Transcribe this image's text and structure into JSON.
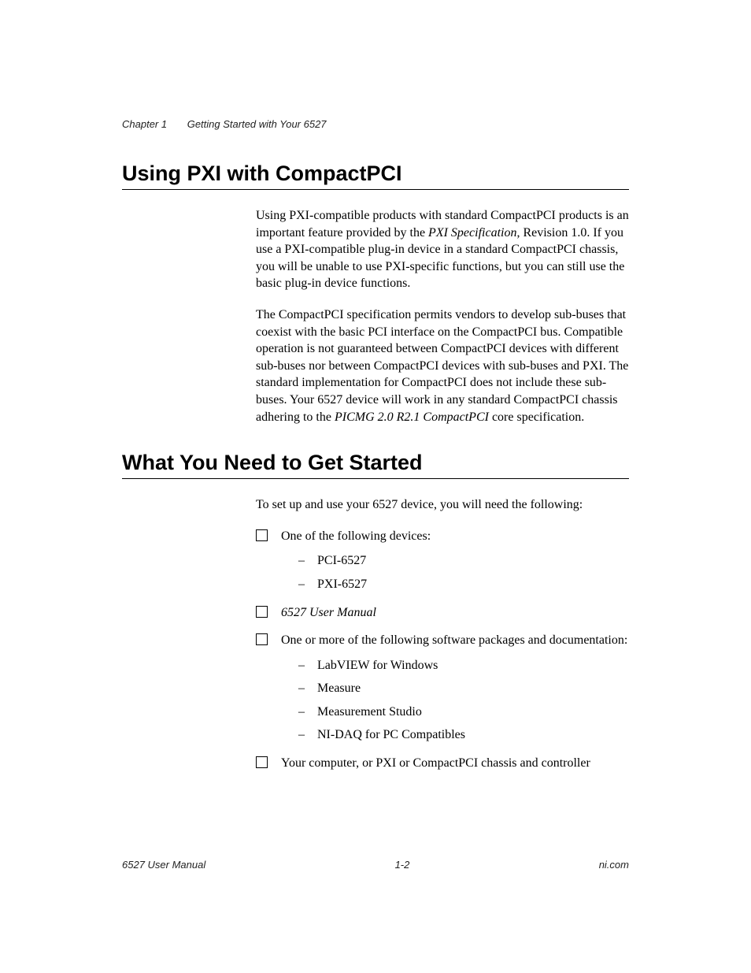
{
  "header": {
    "chapter": "Chapter 1",
    "title": "Getting Started with Your 6527"
  },
  "sections": {
    "s1": {
      "heading": "Using PXI with CompactPCI",
      "p1a": "Using PXI-compatible products with standard CompactPCI products is an important feature provided by the ",
      "p1_em": "PXI Specification",
      "p1b": ", Revision 1.0. If you use a PXI-compatible plug-in device in a standard CompactPCI chassis, you will be unable to use PXI-specific functions, but you can still use the basic plug-in device functions.",
      "p2a": "The CompactPCI specification permits vendors to develop sub-buses that coexist with the basic PCI interface on the CompactPCI bus. Compatible operation is not guaranteed between CompactPCI devices with different sub-buses nor between CompactPCI devices with sub-buses and PXI. The standard implementation for CompactPCI does not include these sub-buses. Your 6527 device will work in any standard CompactPCI chassis adhering to the ",
      "p2_em": "PICMG 2.0 R2.1 CompactPCI",
      "p2b": " core specification."
    },
    "s2": {
      "heading": "What You Need to Get Started",
      "intro": "To set up and use your 6527 device, you will need the following:",
      "items": {
        "i1": {
          "text": "One of the following devices:",
          "subs": {
            "a": "PCI-6527",
            "b": "PXI-6527"
          }
        },
        "i2": {
          "text_em": "6527 User Manual"
        },
        "i3": {
          "text": "One or more of the following software packages and documentation:",
          "subs": {
            "a": "LabVIEW for Windows",
            "b": "Measure",
            "c": "Measurement Studio",
            "d": "NI-DAQ for PC Compatibles"
          }
        },
        "i4": {
          "text": "Your computer, or PXI or CompactPCI chassis and controller"
        }
      }
    }
  },
  "footer": {
    "left": "6527 User Manual",
    "center": "1-2",
    "right": "ni.com"
  },
  "style": {
    "page_bg": "#ffffff",
    "text_color": "#000000",
    "heading_font": "Arial",
    "body_font": "Times New Roman",
    "heading_size_pt": 20,
    "body_size_pt": 12,
    "footer_size_pt": 10
  }
}
